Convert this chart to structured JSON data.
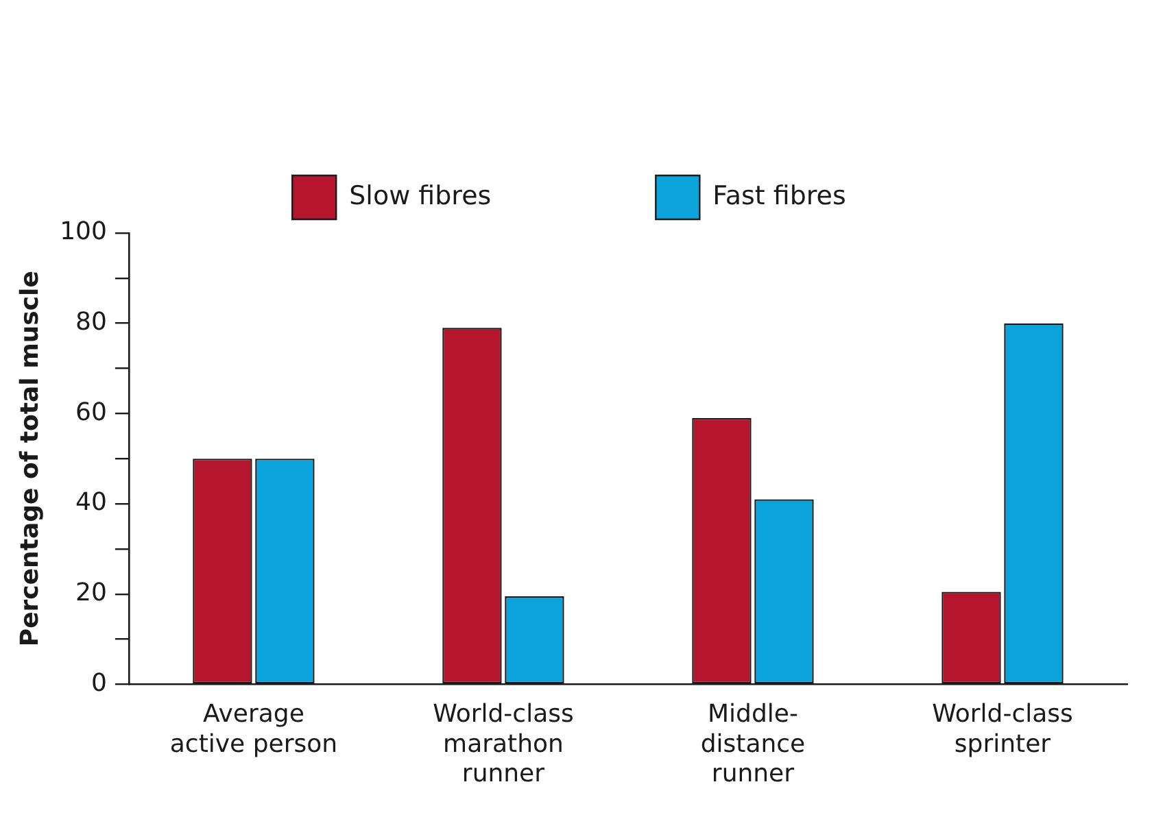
{
  "chart_data": {
    "type": "bar",
    "ylabel": "Percentage of total muscle",
    "categories": [
      "Average\nactive person",
      "World-class\nmarathon\nrunner",
      "Middle-\ndistance\nrunner",
      "World-class\nsprinter"
    ],
    "series": [
      {
        "name": "Slow fibres",
        "color": "#b5162e",
        "values": [
          50,
          79,
          59,
          20.5
        ]
      },
      {
        "name": "Fast fibres",
        "color": "#0ba3dc",
        "values": [
          50,
          19.5,
          41,
          80
        ]
      }
    ],
    "ylim": [
      0,
      100
    ],
    "yticks": [
      0,
      {
        "value": 10,
        "label": null
      },
      20,
      {
        "value": 30,
        "label": null
      },
      40,
      {
        "value": 50,
        "label": null
      },
      60,
      {
        "value": 70,
        "label": null
      },
      80,
      {
        "value": 90,
        "label": null
      },
      100
    ],
    "grid": false,
    "legend": "top"
  }
}
